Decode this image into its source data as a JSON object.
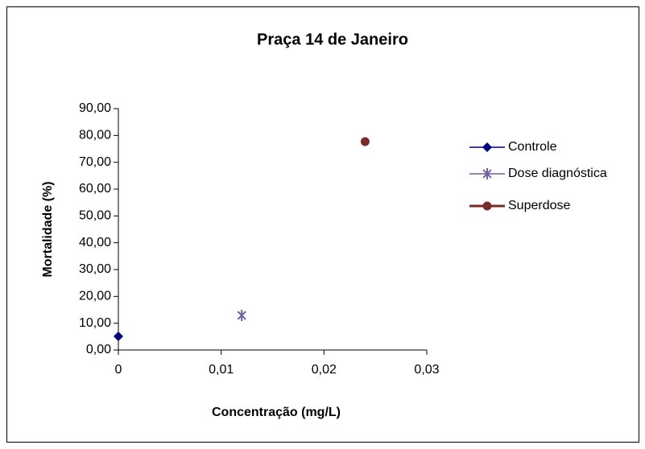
{
  "chart_data": {
    "type": "scatter",
    "title": "Praça 14 de Janeiro",
    "xlabel": "Concentração (mg/L)",
    "ylabel": "Mortalidade (%)",
    "xlim": [
      0,
      0.03
    ],
    "xticks": [
      0,
      {
        "value": 0.01,
        "label": "0,01"
      },
      {
        "value": 0.02,
        "label": "0,02"
      },
      {
        "value": 0.03,
        "label": "0,03"
      }
    ],
    "ylim": [
      0,
      90
    ],
    "yticks": [
      {
        "value": 0,
        "label": "0,00"
      },
      {
        "value": 10,
        "label": "10,00"
      },
      {
        "value": 20,
        "label": "20,00"
      },
      {
        "value": 30,
        "label": "30,00"
      },
      {
        "value": 40,
        "label": "40,00"
      },
      {
        "value": 50,
        "label": "50,00"
      },
      {
        "value": 60,
        "label": "60,00"
      },
      {
        "value": 70,
        "label": "70,00"
      },
      {
        "value": 80,
        "label": "80,00"
      },
      {
        "value": 90,
        "label": "90,00"
      }
    ],
    "grid": false,
    "legend": "right",
    "series": [
      {
        "name": "Controle",
        "color": "#000080",
        "marker": "diamond",
        "x": [
          0
        ],
        "values": [
          5.1
        ]
      },
      {
        "name": "Dose diagnóstica",
        "color": "#6f5f9f",
        "marker": "star",
        "x": [
          0.012
        ],
        "values": [
          12.9
        ]
      },
      {
        "name": "Superdose",
        "color": "#7b2a2a",
        "marker": "circle",
        "x": [
          0.024
        ],
        "values": [
          77.7
        ]
      }
    ]
  }
}
